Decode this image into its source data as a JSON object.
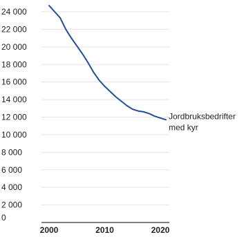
{
  "chart_data": {
    "type": "line",
    "title": "",
    "xlabel": "",
    "ylabel": "",
    "xlim": [
      2000,
      2021
    ],
    "ylim": [
      0,
      24000
    ],
    "x_ticks": [
      2000,
      2010,
      2020
    ],
    "x_tick_labels": [
      "2000",
      "2010",
      "2020"
    ],
    "y_ticks": [
      0,
      2000,
      4000,
      6000,
      8000,
      10000,
      12000,
      14000,
      16000,
      18000,
      20000,
      22000,
      24000
    ],
    "y_tick_labels": [
      "0",
      "2 000",
      "4 000",
      "6 000",
      "8 000",
      "10 000",
      "12 000",
      "14 000",
      "16 000",
      "18 000",
      "20 000",
      "22 000",
      "24 000"
    ],
    "grid": "horizontal",
    "line_color": "#1f4e9c",
    "grid_color": "#e3e3e3",
    "series": [
      {
        "name": "Jordbruksbedrifter med kyr",
        "label_lines": [
          "Jordbruksbedrifter",
          "med kyr"
        ],
        "x": [
          2000,
          2001,
          2002,
          2003,
          2004,
          2005,
          2006,
          2007,
          2008,
          2009,
          2010,
          2011,
          2012,
          2013,
          2014,
          2015,
          2016,
          2017,
          2018,
          2019,
          2020,
          2021
        ],
        "values": [
          24700,
          24000,
          23300,
          22000,
          21000,
          20100,
          19200,
          18200,
          17100,
          16200,
          15500,
          14900,
          14300,
          13800,
          13300,
          12900,
          12700,
          12600,
          12400,
          12100,
          11900,
          11700
        ]
      }
    ]
  }
}
